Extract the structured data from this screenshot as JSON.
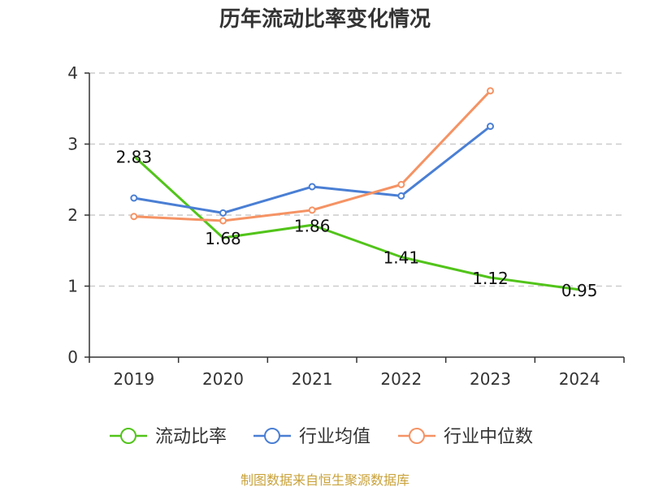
{
  "chart_data": {
    "type": "line",
    "title": "历年流动比率变化情况",
    "xlabel": "",
    "ylabel": "",
    "categories": [
      "2019",
      "2020",
      "2021",
      "2022",
      "2023",
      "2024"
    ],
    "ylim": [
      0,
      4
    ],
    "yticks": [
      "0",
      "1",
      "2",
      "3",
      "4"
    ],
    "grid": true,
    "legend_position": "bottom",
    "series": [
      {
        "name": "流动比率",
        "color": "#52c41a",
        "values": [
          2.83,
          1.68,
          1.86,
          1.41,
          1.12,
          0.95
        ],
        "labels": [
          "2.83",
          "1.68",
          "1.86",
          "1.41",
          "1.12",
          "0.95"
        ]
      },
      {
        "name": "行业均值",
        "color": "#4a7fd4",
        "values": [
          2.24,
          2.03,
          2.4,
          2.27,
          3.25,
          null
        ]
      },
      {
        "name": "行业中位数",
        "color": "#f59364",
        "values": [
          1.98,
          1.92,
          2.07,
          2.43,
          3.75,
          null
        ]
      }
    ]
  },
  "source_text": "制图数据来自恒生聚源数据库"
}
